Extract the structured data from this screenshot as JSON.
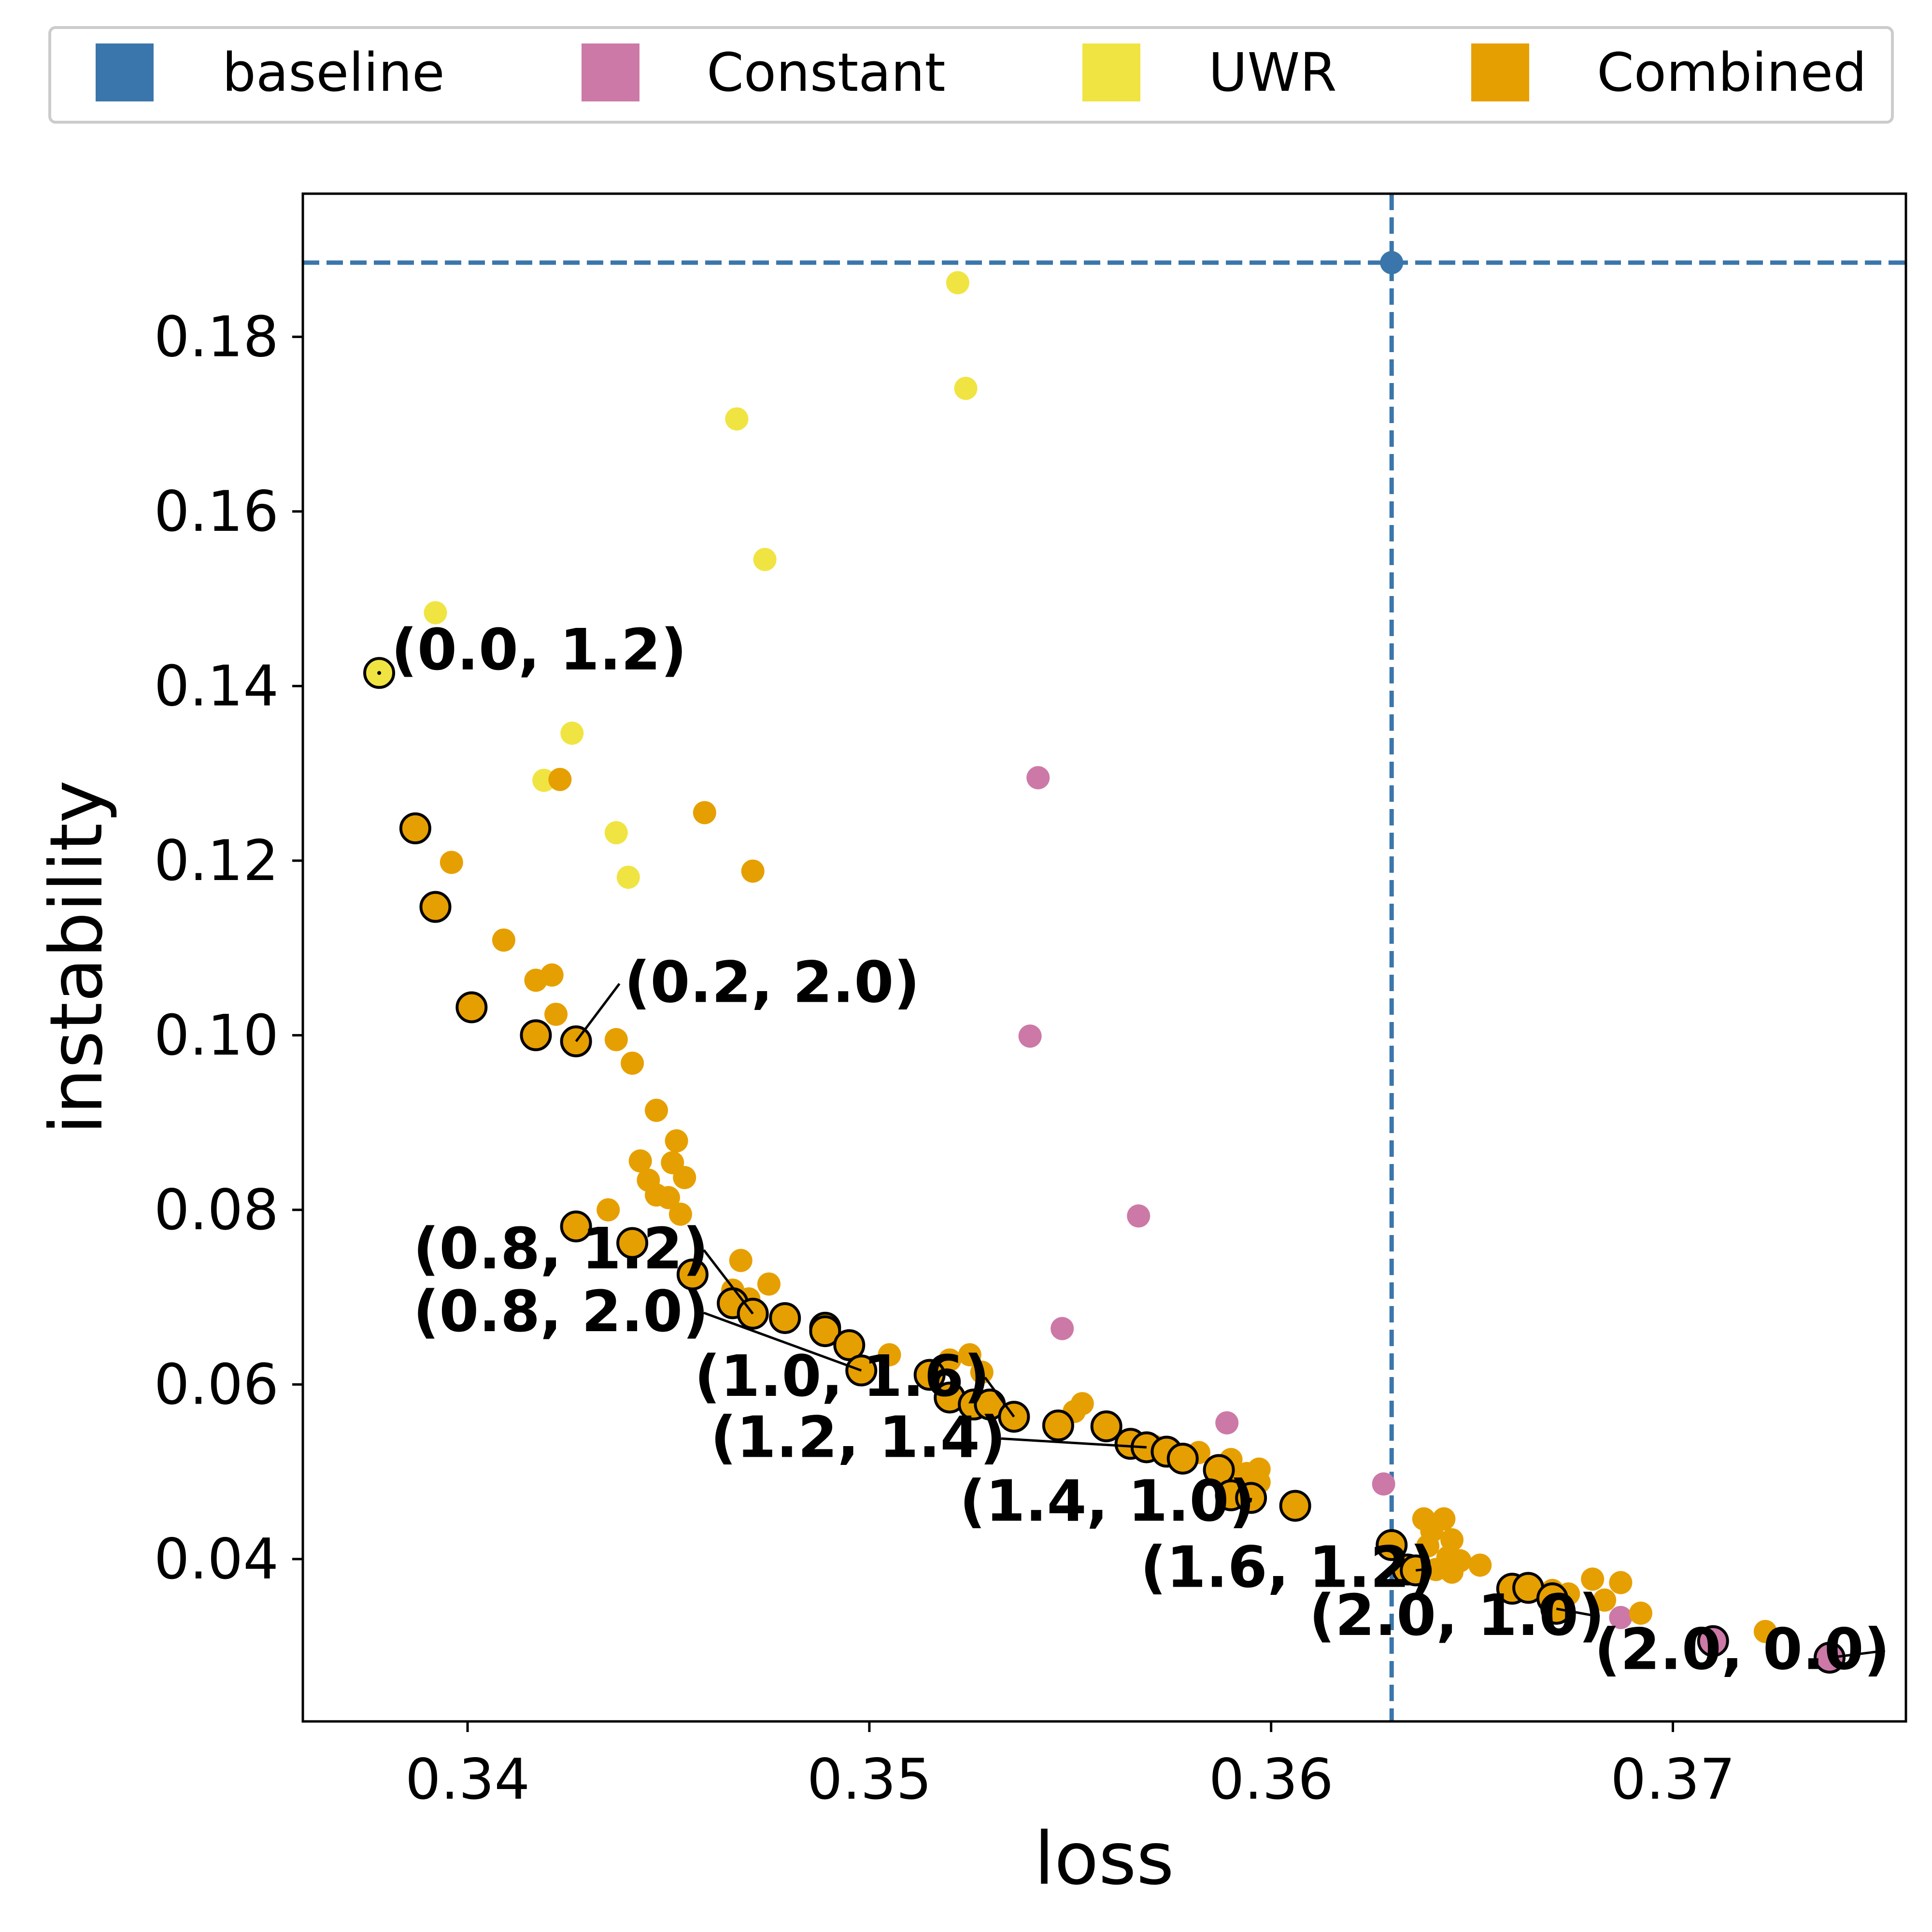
{
  "chart_data": {
    "type": "scatter",
    "xlabel": "loss",
    "ylabel": "instability",
    "xlim": [
      0.3359,
      0.3758
    ],
    "ylim": [
      0.0214,
      0.1964
    ],
    "x_ticks": [
      {
        "value": 0.34,
        "label": "0.34"
      },
      {
        "value": 0.35,
        "label": "0.35"
      },
      {
        "value": 0.36,
        "label": "0.36"
      },
      {
        "value": 0.37,
        "label": "0.37"
      }
    ],
    "y_ticks": [
      {
        "value": 0.04,
        "label": "0.04"
      },
      {
        "value": 0.06,
        "label": "0.06"
      },
      {
        "value": 0.08,
        "label": "0.08"
      },
      {
        "value": 0.1,
        "label": "0.10"
      },
      {
        "value": 0.12,
        "label": "0.12"
      },
      {
        "value": 0.14,
        "label": "0.14"
      },
      {
        "value": 0.16,
        "label": "0.16"
      },
      {
        "value": 0.18,
        "label": "0.18"
      }
    ],
    "grid": false,
    "legend_position": "top",
    "baseline": {
      "x": 0.363,
      "y": 0.1885
    },
    "legend": [
      {
        "name": "baseline",
        "color": "#3a76ab"
      },
      {
        "name": "Constant",
        "color": "#cc79a7"
      },
      {
        "name": "UWR",
        "color": "#f0e442"
      },
      {
        "name": "Combined",
        "color": "#e69f00"
      }
    ],
    "series": [
      {
        "name": "UWR",
        "color": "#f0e442",
        "points": [
          [
            0.3522,
            0.1862
          ],
          [
            0.3524,
            0.1741
          ],
          [
            0.3467,
            0.1706
          ],
          [
            0.3474,
            0.1545
          ],
          [
            0.3392,
            0.1484
          ],
          [
            0.3426,
            0.1346
          ],
          [
            0.3419,
            0.1292
          ],
          [
            0.3437,
            0.1232
          ],
          [
            0.344,
            0.1181
          ]
        ],
        "pareto": [
          [
            0.3378,
            0.1415
          ]
        ]
      },
      {
        "name": "Constant",
        "color": "#cc79a7",
        "points": [
          [
            0.3542,
            0.1295
          ],
          [
            0.354,
            0.0999
          ],
          [
            0.3567,
            0.0793
          ],
          [
            0.3548,
            0.0664
          ],
          [
            0.3589,
            0.0556
          ],
          [
            0.3628,
            0.0486
          ],
          [
            0.3687,
            0.0333
          ]
        ],
        "pareto": [
          [
            0.371,
            0.0306
          ],
          [
            0.3739,
            0.0287
          ]
        ]
      },
      {
        "name": "Combined",
        "color": "#e69f00",
        "points": [
          [
            0.3423,
            0.1293
          ],
          [
            0.3459,
            0.1255
          ],
          [
            0.3471,
            0.1188
          ],
          [
            0.3396,
            0.1198
          ],
          [
            0.3409,
            0.1109
          ],
          [
            0.3417,
            0.1063
          ],
          [
            0.3421,
            0.1069
          ],
          [
            0.3422,
            0.1024
          ],
          [
            0.3437,
            0.0995
          ],
          [
            0.3441,
            0.0968
          ],
          [
            0.3447,
            0.0914
          ],
          [
            0.3452,
            0.0879
          ],
          [
            0.3443,
            0.0856
          ],
          [
            0.3451,
            0.0854
          ],
          [
            0.3445,
            0.0834
          ],
          [
            0.3454,
            0.0837
          ],
          [
            0.3447,
            0.0817
          ],
          [
            0.345,
            0.0814
          ],
          [
            0.3435,
            0.08
          ],
          [
            0.3453,
            0.0795
          ],
          [
            0.3468,
            0.0742
          ],
          [
            0.3475,
            0.0715
          ],
          [
            0.3466,
            0.0708
          ],
          [
            0.347,
            0.0698
          ],
          [
            0.3505,
            0.0634
          ],
          [
            0.352,
            0.0628
          ],
          [
            0.3525,
            0.0634
          ],
          [
            0.3528,
            0.0614
          ],
          [
            0.3553,
            0.0578
          ],
          [
            0.3551,
            0.0569
          ],
          [
            0.3571,
            0.0529
          ],
          [
            0.3582,
            0.0522
          ],
          [
            0.359,
            0.0514
          ],
          [
            0.3594,
            0.0498
          ],
          [
            0.3597,
            0.0503
          ],
          [
            0.3597,
            0.0488
          ],
          [
            0.3592,
            0.0494
          ],
          [
            0.3638,
            0.0446
          ],
          [
            0.3643,
            0.0446
          ],
          [
            0.364,
            0.0432
          ],
          [
            0.3645,
            0.0422
          ],
          [
            0.3639,
            0.0415
          ],
          [
            0.3644,
            0.0402
          ],
          [
            0.3647,
            0.0398
          ],
          [
            0.3645,
            0.0385
          ],
          [
            0.3652,
            0.0393
          ],
          [
            0.3641,
            0.0388
          ],
          [
            0.367,
            0.0364
          ],
          [
            0.3674,
            0.036
          ],
          [
            0.368,
            0.0377
          ],
          [
            0.3687,
            0.0373
          ],
          [
            0.3683,
            0.0353
          ],
          [
            0.3692,
            0.0338
          ],
          [
            0.3723,
            0.0317
          ]
        ],
        "pareto": [
          [
            0.3387,
            0.1237
          ],
          [
            0.3392,
            0.1147
          ],
          [
            0.3401,
            0.1032
          ],
          [
            0.3417,
            0.1
          ],
          [
            0.3427,
            0.0993
          ],
          [
            0.3427,
            0.0781
          ],
          [
            0.3441,
            0.0762
          ],
          [
            0.3456,
            0.0726
          ],
          [
            0.3466,
            0.0693
          ],
          [
            0.3471,
            0.0681
          ],
          [
            0.3479,
            0.0676
          ],
          [
            0.3489,
            0.0665
          ],
          [
            0.3489,
            0.0661
          ],
          [
            0.3495,
            0.0645
          ],
          [
            0.3498,
            0.0616
          ],
          [
            0.3515,
            0.0611
          ],
          [
            0.352,
            0.0585
          ],
          [
            0.3526,
            0.0577
          ],
          [
            0.353,
            0.0577
          ],
          [
            0.3536,
            0.0563
          ],
          [
            0.3547,
            0.0553
          ],
          [
            0.3559,
            0.0552
          ],
          [
            0.3565,
            0.0532
          ],
          [
            0.3569,
            0.0528
          ],
          [
            0.3574,
            0.0523
          ],
          [
            0.3578,
            0.0515
          ],
          [
            0.3587,
            0.0502
          ],
          [
            0.359,
            0.0473
          ],
          [
            0.3595,
            0.047
          ],
          [
            0.3606,
            0.0461
          ],
          [
            0.363,
            0.0416
          ],
          [
            0.3634,
            0.0388
          ],
          [
            0.3636,
            0.0387
          ],
          [
            0.366,
            0.0366
          ],
          [
            0.3664,
            0.0367
          ],
          [
            0.367,
            0.0355
          ],
          [
            0.3671,
            0.0343
          ]
        ]
      }
    ],
    "annotations": [
      {
        "text": "(0.0, 1.2)",
        "point": [
          0.3378,
          0.1415
        ],
        "label_at": [
          0.3381,
          0.1419
        ],
        "anchor": "start",
        "leader": false
      },
      {
        "text": "(0.2, 2.0)",
        "point": [
          0.3427,
          0.0993
        ],
        "label_at": [
          0.3439,
          0.1038
        ],
        "anchor": "start",
        "leader": true
      },
      {
        "text": "(0.8, 1.2)",
        "point": [
          0.3471,
          0.0681
        ],
        "label_at": [
          0.346,
          0.0733
        ],
        "anchor": "end",
        "leader": true
      },
      {
        "text": "(0.8, 2.0)",
        "point": [
          0.3498,
          0.0616
        ],
        "label_at": [
          0.346,
          0.0661
        ],
        "anchor": "end",
        "leader": true
      },
      {
        "text": "(1.0, 1.6)",
        "point": [
          0.3536,
          0.0563
        ],
        "label_at": [
          0.353,
          0.0587
        ],
        "anchor": "end",
        "leader": true
      },
      {
        "text": "(1.2, 1.4)",
        "point": [
          0.3569,
          0.0528
        ],
        "label_at": [
          0.3534,
          0.0517
        ],
        "anchor": "end",
        "leader": true
      },
      {
        "text": "(1.4, 1.0)",
        "point": [
          0.3595,
          0.047
        ],
        "label_at": [
          0.3596,
          0.0444
        ],
        "anchor": "end",
        "leader": true
      },
      {
        "text": "(1.6, 1.2)",
        "point": [
          0.3636,
          0.0387
        ],
        "label_at": [
          0.3641,
          0.0368
        ],
        "anchor": "end",
        "leader": true
      },
      {
        "text": "(2.0, 1.0)",
        "point": [
          0.3671,
          0.0343
        ],
        "label_at": [
          0.3683,
          0.0313
        ],
        "anchor": "end",
        "leader": true
      },
      {
        "text": "(2.0, 0.0)",
        "point": [
          0.3739,
          0.0287
        ],
        "label_at": [
          0.3754,
          0.0274
        ],
        "anchor": "end",
        "leader": true
      }
    ]
  }
}
